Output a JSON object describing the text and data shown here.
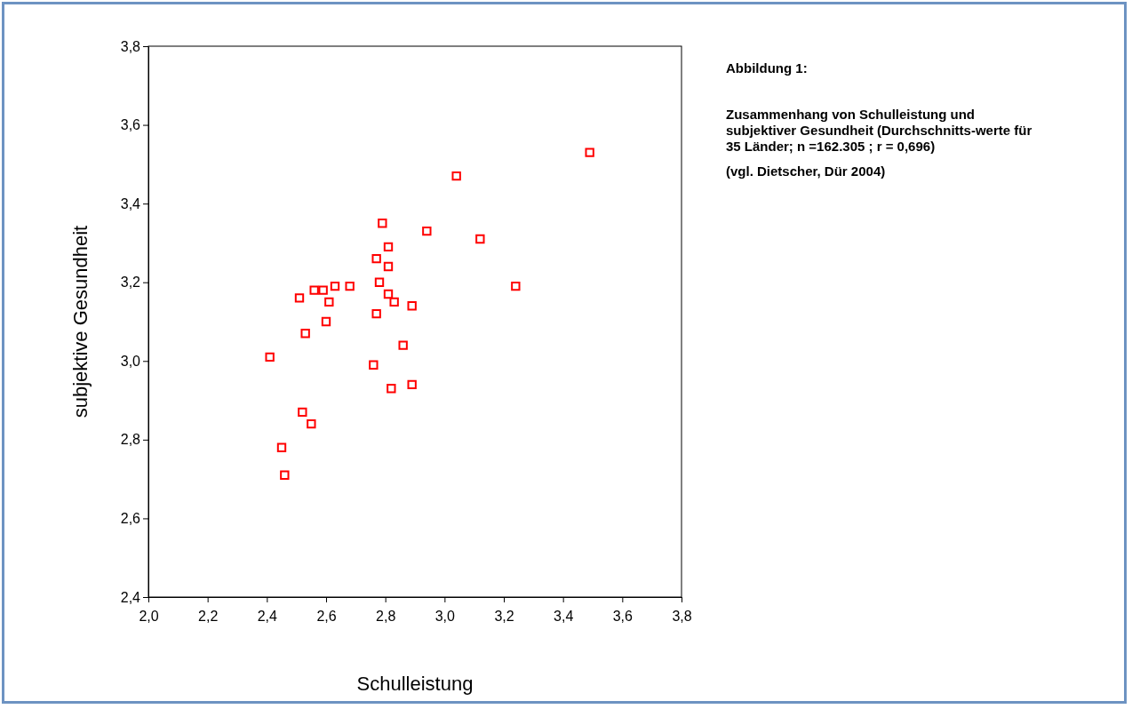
{
  "chart_data": {
    "type": "scatter",
    "title": "Abbildung 1:",
    "subtitle": "Zusammenhang von Schulleistung und subjektiver Gesundheit (Durchschnitts-werte für 35 Länder; n =162.305 ; r = 0,696)",
    "annotations": [
      "(vgl. Dietscher, Dür 2004)"
    ],
    "xlabel": "Schulleistung",
    "ylabel": "subjektive Gesundheit",
    "marker": "square",
    "xlim": [
      2.0,
      3.8
    ],
    "ylim": [
      2.4,
      3.8
    ],
    "xticks": [
      {
        "value": 2.0,
        "label": "2,0"
      },
      {
        "value": 2.2,
        "label": "2,2"
      },
      {
        "value": 2.4,
        "label": "2,4"
      },
      {
        "value": 2.6,
        "label": "2,6"
      },
      {
        "value": 2.8,
        "label": "2,8"
      },
      {
        "value": 3.0,
        "label": "3,0"
      },
      {
        "value": 3.2,
        "label": "3,2"
      },
      {
        "value": 3.4,
        "label": "3,4"
      },
      {
        "value": 3.6,
        "label": "3,6"
      },
      {
        "value": 3.8,
        "label": "3,8"
      }
    ],
    "yticks": [
      {
        "value": 2.4,
        "label": "2,4"
      },
      {
        "value": 2.6,
        "label": "2,6"
      },
      {
        "value": 2.8,
        "label": "2,8"
      },
      {
        "value": 3.0,
        "label": "3,0"
      },
      {
        "value": 3.2,
        "label": "3,2"
      },
      {
        "value": 3.4,
        "label": "3,4"
      },
      {
        "value": 3.6,
        "label": "3,6"
      },
      {
        "value": 3.8,
        "label": "3,8"
      }
    ],
    "series": [
      {
        "color": "#ff0000",
        "x": [
          3.49,
          3.12,
          3.04,
          2.94,
          2.79,
          2.81,
          2.77,
          2.81,
          3.24,
          2.78,
          2.63,
          2.68,
          2.56,
          2.59,
          2.51,
          2.81,
          2.61,
          2.83,
          2.89,
          2.77,
          2.6,
          2.53,
          2.86,
          2.41,
          2.76,
          2.89,
          2.82,
          2.52,
          2.55,
          2.45,
          2.46
        ],
        "values": [
          3.53,
          3.31,
          3.47,
          3.33,
          3.35,
          3.29,
          3.26,
          3.24,
          3.19,
          3.2,
          3.19,
          3.19,
          3.18,
          3.18,
          3.16,
          3.17,
          3.15,
          3.15,
          3.14,
          3.12,
          3.1,
          3.07,
          3.04,
          3.01,
          2.99,
          2.94,
          2.93,
          2.87,
          2.84,
          2.78,
          2.71
        ]
      }
    ]
  }
}
